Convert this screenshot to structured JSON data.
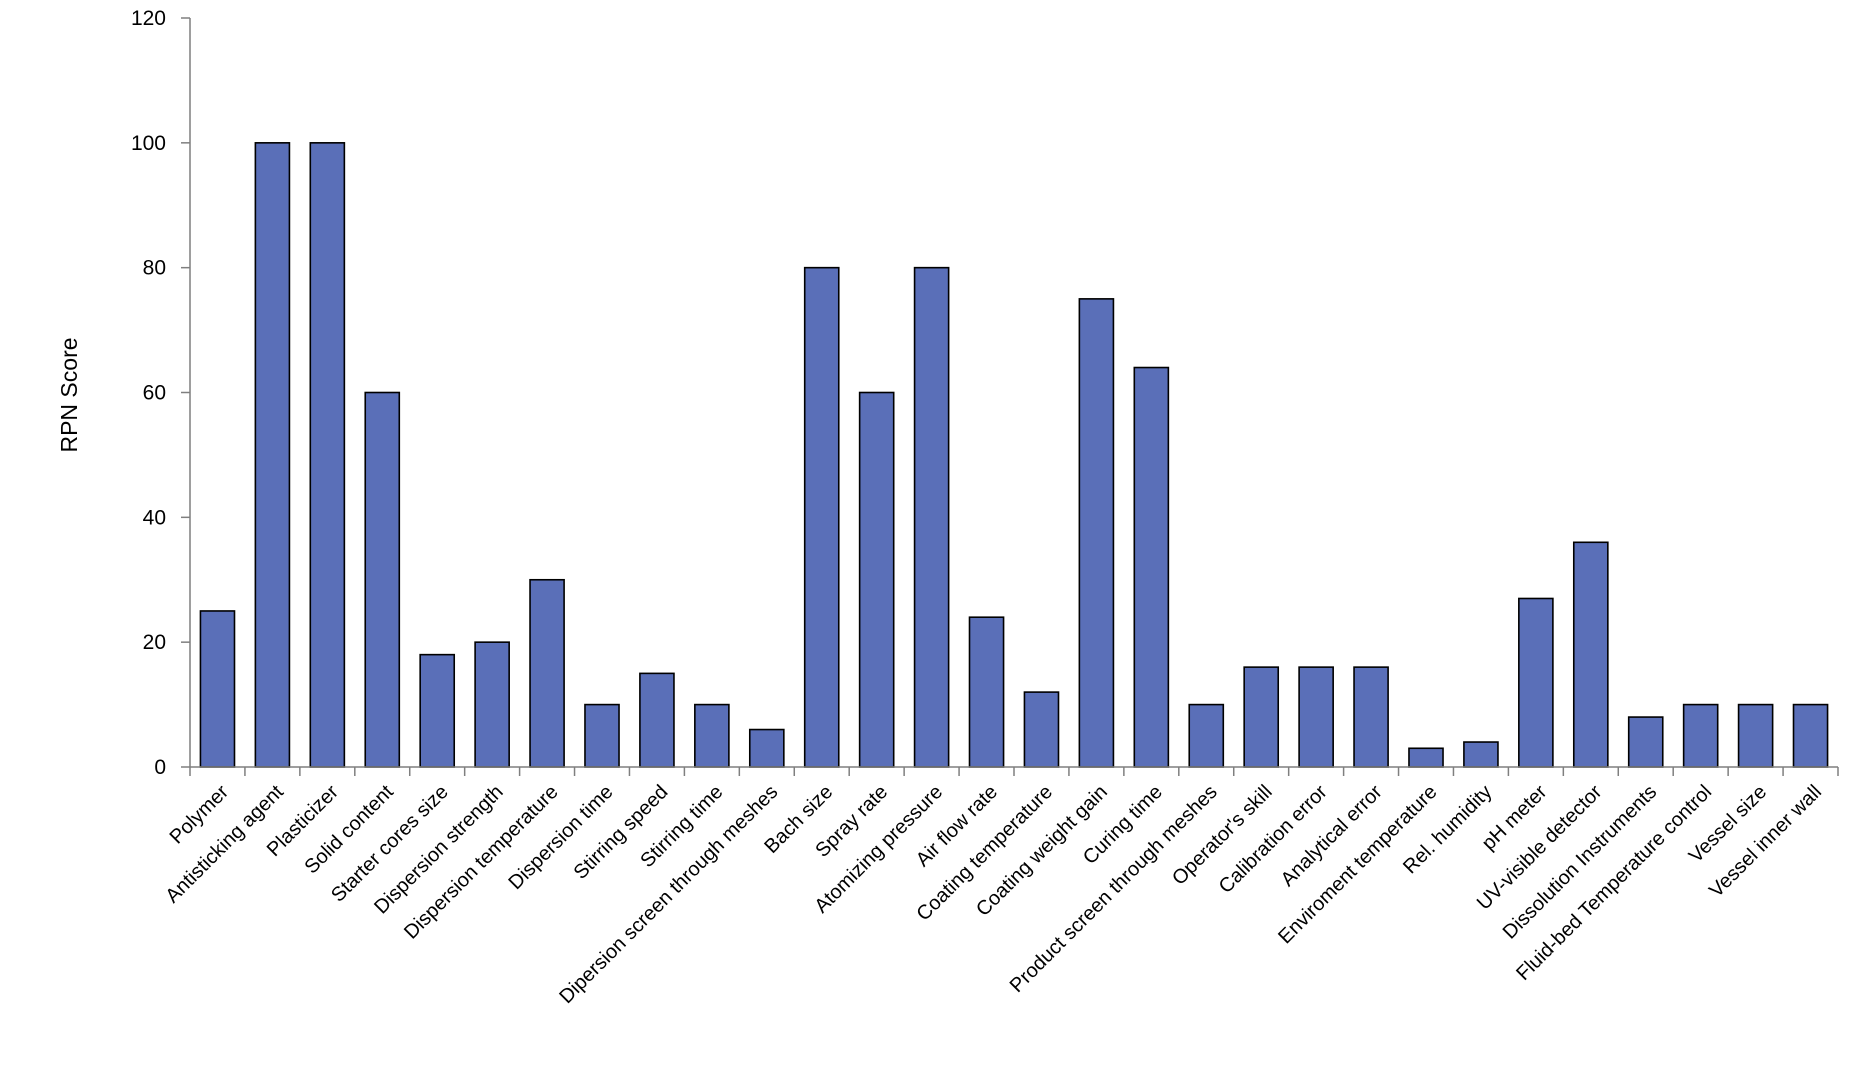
{
  "colors": {
    "bar_fill": "#5a6fb8",
    "bar_stroke": "#000000",
    "axis": "#7f7f7f"
  },
  "chart_data": {
    "type": "bar",
    "title": "",
    "xlabel": "",
    "ylabel": "RPN Score",
    "ylim": [
      0,
      120
    ],
    "yticks": [
      0,
      20,
      40,
      60,
      80,
      100,
      120
    ],
    "grid": false,
    "legend": "none",
    "categories": [
      "Polymer",
      "Antisticking agent",
      "Plasticizer",
      "Solid content",
      "Starter cores size",
      "Dispersion strength",
      "Dispersion temperature",
      "Dispersion time",
      "Stirring speed",
      "Stirring time",
      "Dipersion screen through meshes",
      "Bach size",
      "Spray rate",
      "Atomizing pressure",
      "Air flow rate",
      "Coating temperature",
      "Coating weight gain",
      "Curing time",
      "Product screen through meshes",
      "Operator's skill",
      "Calibration error",
      "Analytical error",
      "Enviroment temperature",
      "Rel. humidity",
      "pH meter",
      "UV-visible detector",
      "Dissolution Instruments",
      "Fluid-bed Temperature control",
      "Vessel size",
      "Vessel inner wall"
    ],
    "values": [
      25,
      100,
      100,
      60,
      18,
      20,
      30,
      10,
      15,
      10,
      6,
      80,
      60,
      80,
      24,
      12,
      75,
      64,
      10,
      16,
      16,
      16,
      3,
      4,
      27,
      36,
      8,
      10,
      10,
      10
    ]
  }
}
